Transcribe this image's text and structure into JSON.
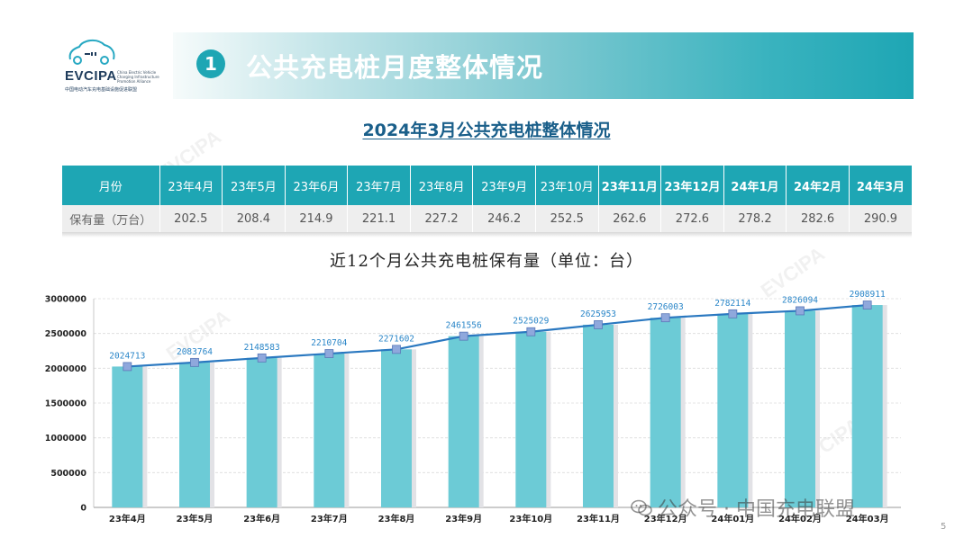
{
  "logo": {
    "brand": "EVCIPA",
    "tagline": "China Electric Vehicle Charging Infrastructure Promotion Alliance",
    "subtitle": "中国电动汽车充电基础设施促进联盟"
  },
  "header": {
    "number": "1",
    "title": "公共充电桩月度整体情况"
  },
  "section_title": "2024年3月公共充电桩整体情况",
  "table": {
    "header_label": "月份",
    "row_label": "保有量（万台）",
    "months": [
      "23年4月",
      "23年5月",
      "23年6月",
      "23年7月",
      "23年8月",
      "23年9月",
      "23年10月",
      "23年11月",
      "23年12月",
      "24年1月",
      "24年2月",
      "24年3月"
    ],
    "values": [
      "202.5",
      "208.4",
      "214.9",
      "221.1",
      "227.2",
      "246.2",
      "252.5",
      "262.6",
      "272.6",
      "278.2",
      "282.6",
      "290.9"
    ]
  },
  "chart_data": {
    "type": "bar",
    "title": "近12个月公共充电桩保有量（单位：台）",
    "categories": [
      "23年4月",
      "23年5月",
      "23年6月",
      "23年7月",
      "23年8月",
      "23年9月",
      "23年10月",
      "23年11月",
      "23年12月",
      "24年01月",
      "24年02月",
      "24年03月"
    ],
    "series": [
      {
        "type": "bar",
        "values": [
          2024713,
          2083764,
          2148583,
          2210704,
          2271602,
          2461556,
          2525029,
          2625953,
          2726003,
          2782114,
          2826094,
          2908911
        ]
      },
      {
        "type": "line",
        "values": [
          2024713,
          2083764,
          2148583,
          2210704,
          2271602,
          2461556,
          2525029,
          2625953,
          2726003,
          2782114,
          2826094,
          2908911
        ]
      }
    ],
    "ylim": [
      0,
      3000000
    ],
    "yticks": [
      0,
      500000,
      1000000,
      1500000,
      2000000,
      2500000,
      3000000
    ],
    "grid": true,
    "colors": {
      "bar": "#6ccbd6",
      "line": "#2a78c0",
      "marker": "#8fa8dc",
      "label": "#2a86c8"
    }
  },
  "watermark": "公众号 · 中国充电联盟",
  "page_number": "5"
}
